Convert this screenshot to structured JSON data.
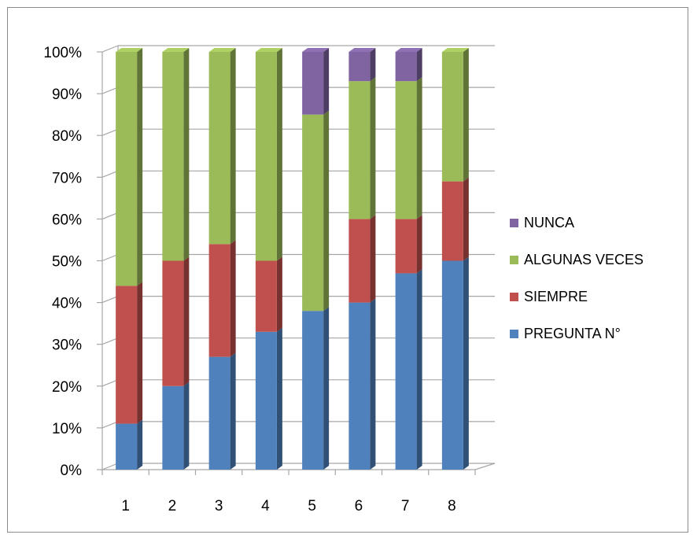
{
  "chart_data": {
    "type": "bar",
    "stacked": true,
    "percent": true,
    "categories": [
      "1",
      "2",
      "3",
      "4",
      "5",
      "6",
      "7",
      "8"
    ],
    "series": [
      {
        "name": "PREGUNTA N°",
        "color": "#4f81bd",
        "values": [
          11,
          20,
          27,
          33,
          38,
          40,
          47,
          50
        ]
      },
      {
        "name": "SIEMPRE",
        "color": "#c0504d",
        "values": [
          33,
          30,
          27,
          17,
          0,
          20,
          13,
          19
        ]
      },
      {
        "name": "ALGUNAS VECES",
        "color": "#9bbb59",
        "values": [
          56,
          50,
          46,
          50,
          47,
          33,
          33,
          31
        ]
      },
      {
        "name": "NUNCA",
        "color": "#8064a2",
        "values": [
          0,
          0,
          0,
          0,
          15,
          7,
          7,
          0
        ]
      }
    ],
    "y_ticks": [
      "0%",
      "10%",
      "20%",
      "30%",
      "40%",
      "50%",
      "60%",
      "70%",
      "80%",
      "90%",
      "100%"
    ],
    "ylim": [
      0,
      100
    ],
    "grid": true,
    "legend_position": "right",
    "legend_order": [
      "NUNCA",
      "ALGUNAS VECES",
      "SIEMPRE",
      "PREGUNTA N°"
    ],
    "title": "",
    "xlabel": "",
    "ylabel": ""
  }
}
